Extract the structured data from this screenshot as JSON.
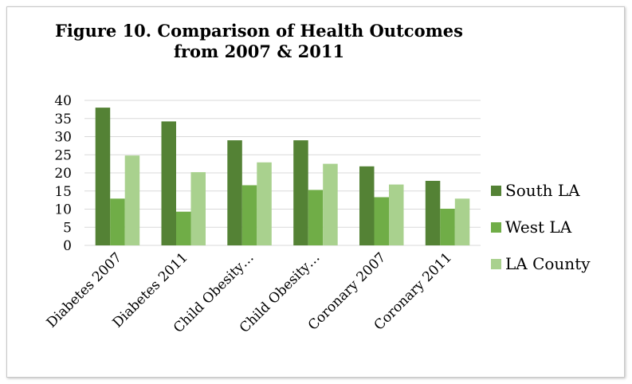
{
  "chart_data": {
    "type": "bar",
    "title_lines": [
      "Figure 10. Comparison of Health Outcomes",
      "from 2007 & 2011"
    ],
    "categories": [
      "Diabetes 2007",
      "Diabetes 2011",
      "Child Obesity…",
      "Child Obesity…",
      "Coronary 2007",
      "Coronary 2011"
    ],
    "series": [
      {
        "name": "South LA",
        "color": "#548235",
        "values": [
          38.0,
          34.2,
          29.0,
          29.0,
          21.8,
          17.8
        ]
      },
      {
        "name": "West LA",
        "color": "#70ad47",
        "values": [
          12.9,
          9.3,
          16.6,
          15.3,
          13.3,
          10.1
        ]
      },
      {
        "name": "LA County",
        "color": "#a9d18e",
        "values": [
          24.8,
          20.2,
          22.9,
          22.5,
          16.8,
          12.9
        ]
      }
    ],
    "ylim": [
      0,
      40
    ],
    "yticks": [
      "0",
      "5",
      "10",
      "15",
      "20",
      "25",
      "30",
      "35",
      "40"
    ],
    "grid": true,
    "legend": "right",
    "xlabel": "",
    "ylabel": ""
  }
}
